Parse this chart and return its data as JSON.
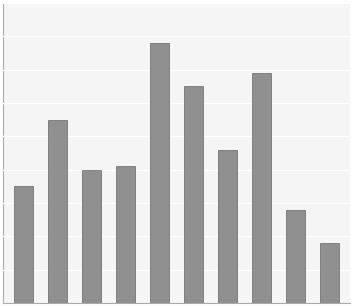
{
  "values": [
    3.5,
    5.5,
    4.0,
    4.1,
    7.8,
    6.5,
    4.6,
    6.9,
    2.8,
    1.8
  ],
  "bar_color": "#909090",
  "bar_edge_color": "#666666",
  "background_color": "#ffffff",
  "plot_bg_color": "#f5f5f5",
  "ylim": [
    0,
    9
  ],
  "yticks": [
    0,
    1,
    2,
    3,
    4,
    5,
    6,
    7,
    8,
    9
  ],
  "grid_color": "#ffffff",
  "bar_width": 0.55,
  "figsize": [
    3.53,
    3.06
  ],
  "dpi": 100
}
